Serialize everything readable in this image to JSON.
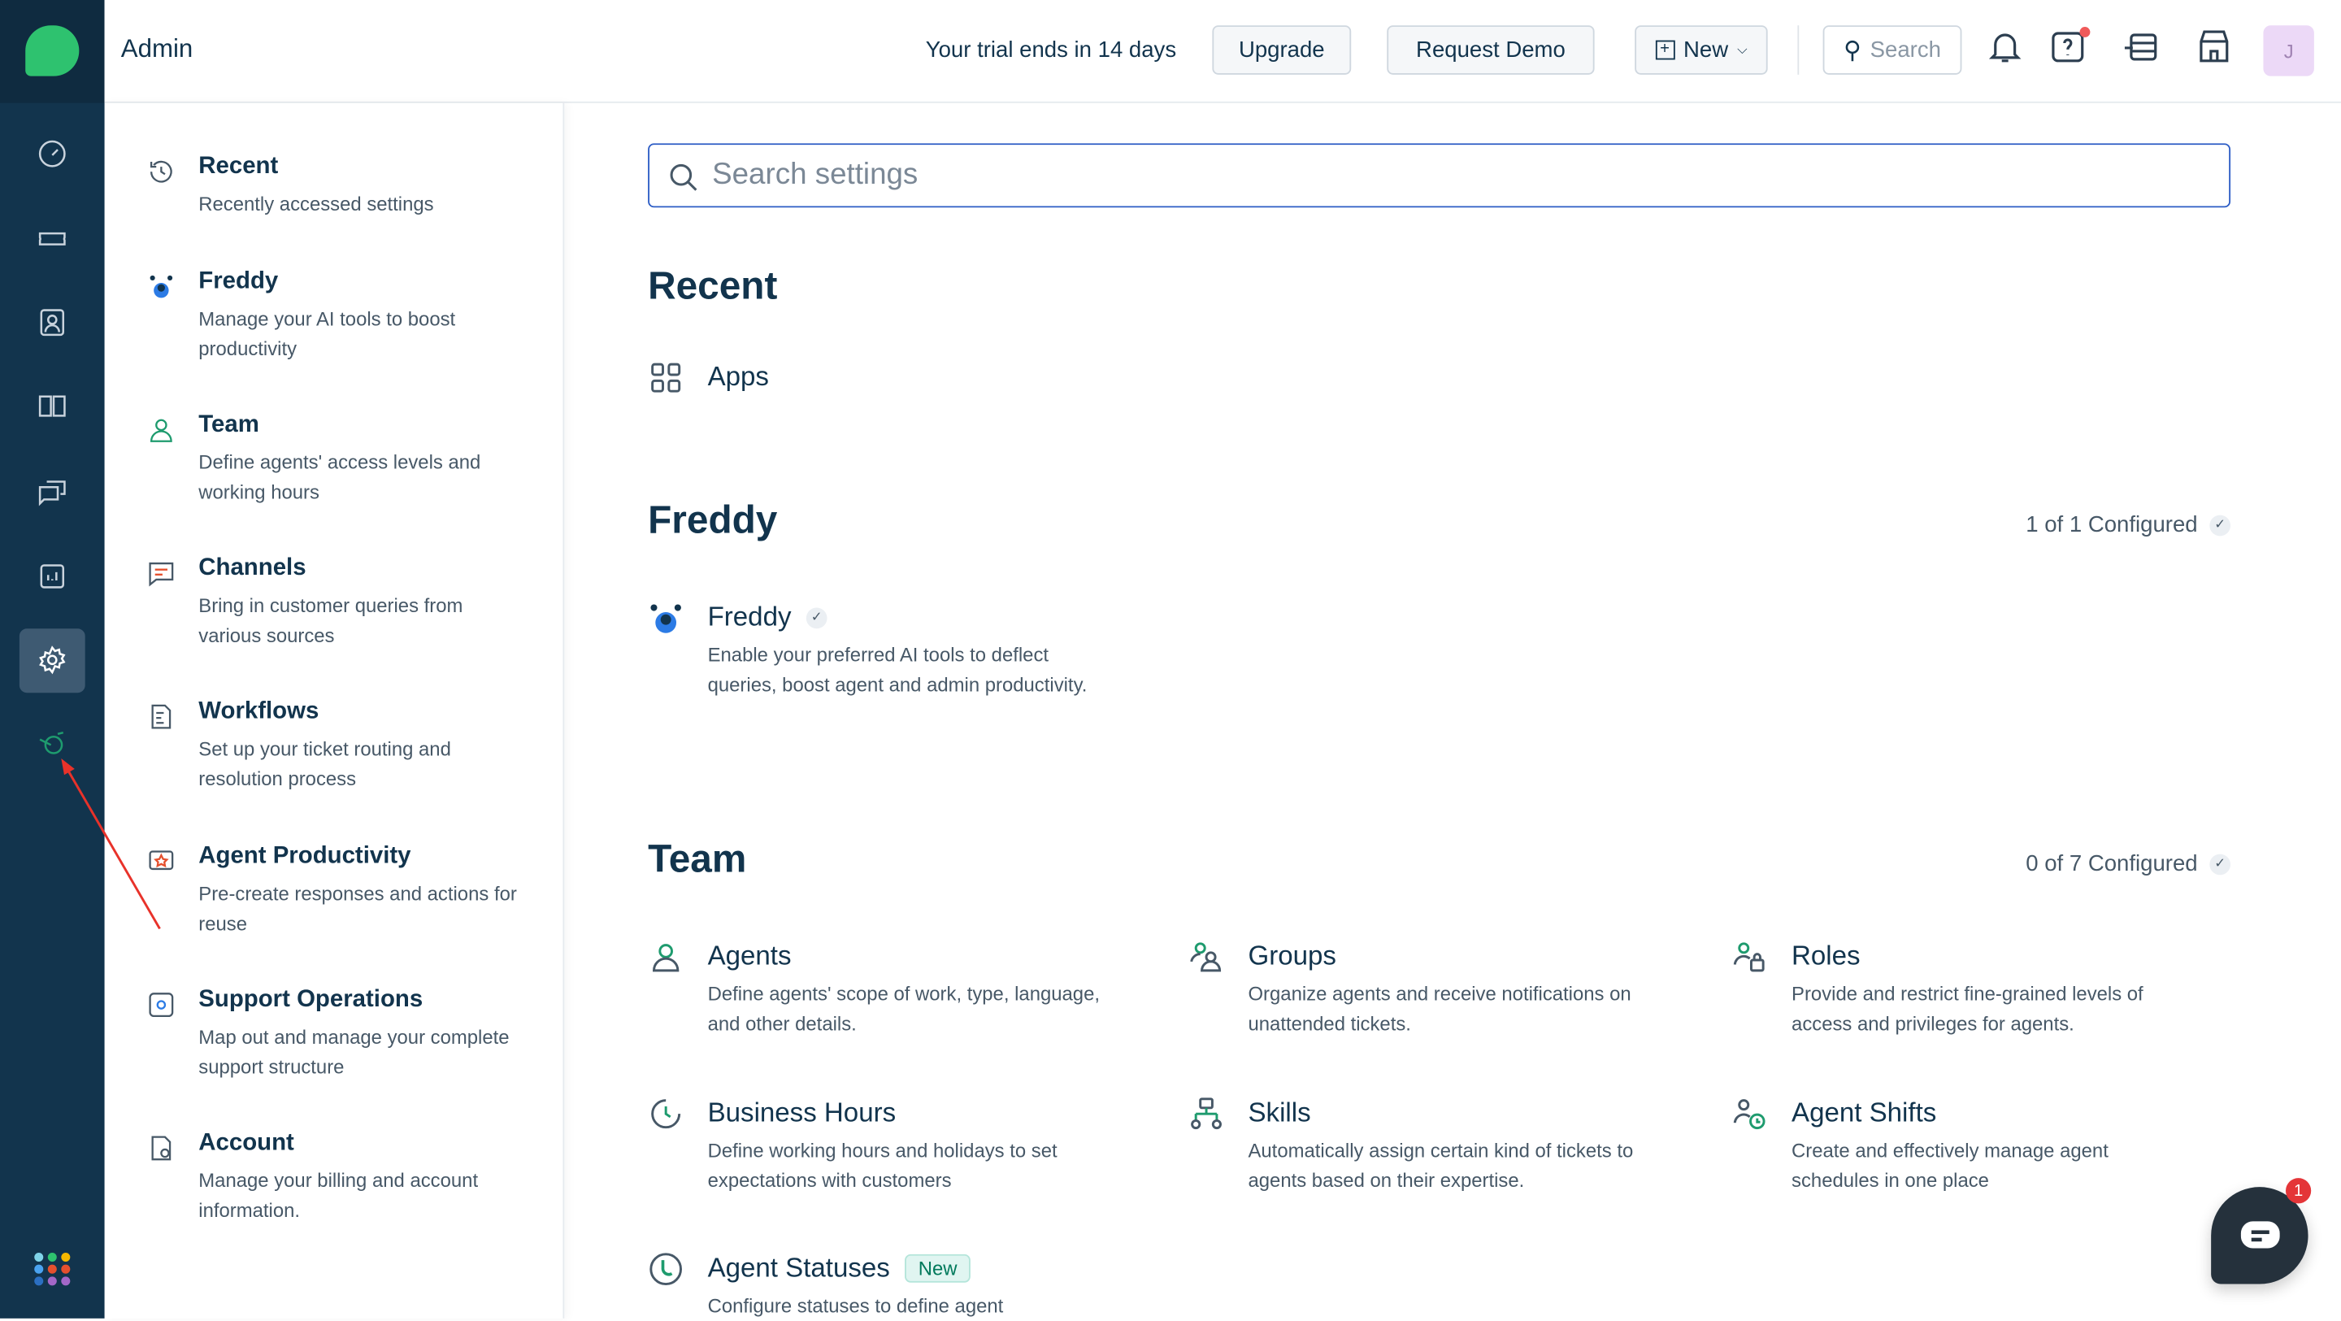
{
  "app": {
    "title": "Admin"
  },
  "topbar": {
    "trial_text": "Your trial ends in 14 days",
    "upgrade": "Upgrade",
    "request_demo": "Request Demo",
    "new": "New",
    "search_placeholder": "Search",
    "avatar_initial": "J"
  },
  "rail": {
    "items": [
      "dashboard-icon",
      "tickets-icon",
      "contacts-icon",
      "solutions-icon",
      "conversations-icon",
      "reports-icon",
      "admin-settings-icon",
      "freddy-icon"
    ],
    "active": "admin-settings-icon",
    "accent": "#2ec26f"
  },
  "sidebar": {
    "items": [
      {
        "title": "Recent",
        "desc": "Recently accessed settings",
        "icon": "history-icon"
      },
      {
        "title": "Freddy",
        "desc": "Manage your AI tools to boost productivity",
        "icon": "freddy-icon"
      },
      {
        "title": "Team",
        "desc": "Define agents' access levels and working hours",
        "icon": "person-icon"
      },
      {
        "title": "Channels",
        "desc": "Bring in customer queries from various sources",
        "icon": "chat-icon"
      },
      {
        "title": "Workflows",
        "desc": "Set up your ticket routing and resolution process",
        "icon": "workflow-icon"
      },
      {
        "title": "Agent Productivity",
        "desc": "Pre-create responses and actions for reuse",
        "icon": "productivity-icon"
      },
      {
        "title": "Support Operations",
        "desc": "Map out and manage your complete support structure",
        "icon": "operations-icon"
      },
      {
        "title": "Account",
        "desc": "Manage your billing and account information.",
        "icon": "account-icon"
      }
    ]
  },
  "main": {
    "search_placeholder": "Search settings",
    "recent": {
      "title": "Recent",
      "items": [
        {
          "title": "Apps"
        }
      ]
    },
    "freddy": {
      "title": "Freddy",
      "configured": "1 of 1 Configured",
      "items": [
        {
          "title": "Freddy",
          "desc": "Enable your preferred AI tools to deflect queries, boost agent and admin productivity."
        }
      ]
    },
    "team": {
      "title": "Team",
      "configured": "0 of 7 Configured",
      "items": [
        {
          "title": "Agents",
          "desc": "Define agents' scope of work, type, language, and other details."
        },
        {
          "title": "Groups",
          "desc": "Organize agents and receive notifications on unattended tickets."
        },
        {
          "title": "Roles",
          "desc": "Provide and restrict fine-grained levels of access and privileges for agents."
        },
        {
          "title": "Business Hours",
          "desc": "Define working hours and holidays to set expectations with customers"
        },
        {
          "title": "Skills",
          "desc": "Automatically assign certain kind of tickets to agents based on their expertise."
        },
        {
          "title": "Agent Shifts",
          "desc": "Create and effectively manage agent schedules in one place"
        },
        {
          "title": "Agent Statuses",
          "badge": "New",
          "desc": "Configure statuses to define agent"
        }
      ]
    }
  },
  "chat": {
    "unread": "1"
  }
}
